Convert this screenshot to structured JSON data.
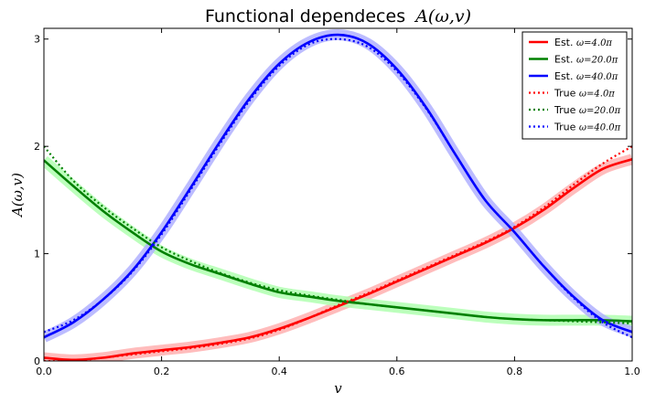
{
  "chart_data": {
    "type": "line",
    "title": "Functional dependeces",
    "title_math": "A(ω,v)",
    "xlabel": "v",
    "ylabel": "A(ω,v)",
    "xlim": [
      0,
      1
    ],
    "ylim": [
      0,
      3.1
    ],
    "xticks": [
      "0.0",
      "0.2",
      "0.4",
      "0.6",
      "0.8",
      "1.0"
    ],
    "xtick_values": [
      0,
      0.2,
      0.4,
      0.6,
      0.8,
      1.0
    ],
    "yticks": [
      "0",
      "1",
      "2",
      "3"
    ],
    "ytick_values": [
      0,
      1,
      2,
      3
    ],
    "grid": false,
    "legend_position": "top-right",
    "x": [
      0,
      0.05,
      0.1,
      0.15,
      0.2,
      0.25,
      0.3,
      0.35,
      0.4,
      0.45,
      0.5,
      0.55,
      0.6,
      0.65,
      0.7,
      0.75,
      0.8,
      0.85,
      0.9,
      0.95,
      1.0
    ],
    "series": [
      {
        "name": "Est.",
        "legend_math": "ω=4.0π",
        "color": "#ff0000",
        "band_color": "#ffb0b0",
        "style": "solid",
        "values": [
          0.03,
          0.01,
          0.03,
          0.07,
          0.1,
          0.13,
          0.17,
          0.22,
          0.3,
          0.4,
          0.51,
          0.62,
          0.74,
          0.86,
          0.98,
          1.1,
          1.24,
          1.41,
          1.61,
          1.79,
          1.88
        ]
      },
      {
        "name": "Est.",
        "legend_math": "ω=20.0π",
        "color": "#008000",
        "band_color": "#b0ffb0",
        "style": "solid",
        "values": [
          1.87,
          1.63,
          1.4,
          1.2,
          1.02,
          0.9,
          0.81,
          0.72,
          0.64,
          0.6,
          0.56,
          0.53,
          0.5,
          0.47,
          0.44,
          0.41,
          0.39,
          0.38,
          0.38,
          0.38,
          0.37
        ]
      },
      {
        "name": "Est.",
        "legend_math": "ω=40.0π",
        "color": "#0000ff",
        "band_color": "#b0b0ff",
        "style": "solid",
        "values": [
          0.22,
          0.36,
          0.57,
          0.84,
          1.2,
          1.62,
          2.05,
          2.45,
          2.77,
          2.97,
          3.04,
          2.96,
          2.72,
          2.36,
          1.92,
          1.5,
          1.2,
          0.88,
          0.6,
          0.38,
          0.27
        ]
      },
      {
        "name": "True",
        "legend_math": "ω=4.0π",
        "color": "#ff0000",
        "style": "dotted",
        "values": [
          0.0,
          0.0,
          0.03,
          0.06,
          0.09,
          0.12,
          0.16,
          0.21,
          0.29,
          0.4,
          0.52,
          0.63,
          0.75,
          0.87,
          0.99,
          1.11,
          1.25,
          1.43,
          1.64,
          1.84,
          2.0
        ]
      },
      {
        "name": "True",
        "legend_math": "ω=20.0π",
        "color": "#008000",
        "style": "dotted",
        "values": [
          2.0,
          1.68,
          1.44,
          1.24,
          1.06,
          0.93,
          0.82,
          0.73,
          0.66,
          0.61,
          0.57,
          0.53,
          0.5,
          0.47,
          0.44,
          0.41,
          0.39,
          0.38,
          0.37,
          0.36,
          0.35
        ]
      },
      {
        "name": "True",
        "legend_math": "ω=40.0π",
        "color": "#0000ff",
        "style": "dotted",
        "values": [
          0.27,
          0.38,
          0.57,
          0.83,
          1.18,
          1.6,
          2.03,
          2.43,
          2.75,
          2.95,
          3.0,
          2.93,
          2.7,
          2.35,
          1.92,
          1.5,
          1.2,
          0.88,
          0.59,
          0.36,
          0.22
        ]
      }
    ]
  }
}
